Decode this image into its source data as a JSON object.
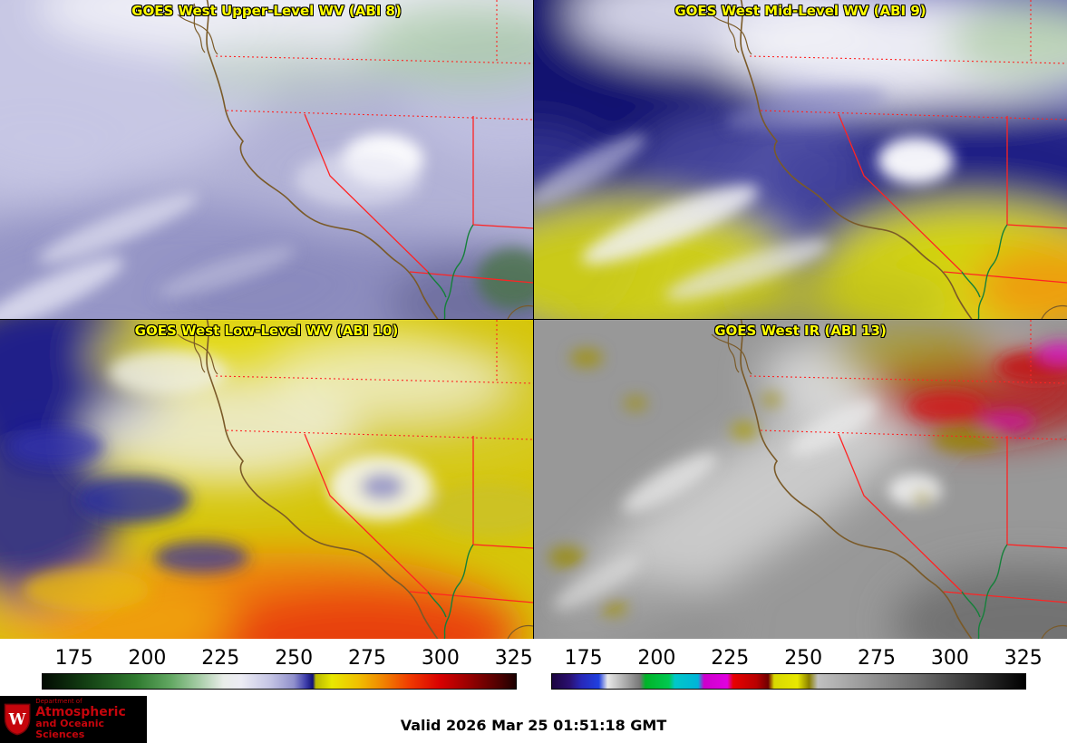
{
  "panels": [
    {
      "id": "abi8",
      "title": "GOES West Upper-Level WV (ABI 8)"
    },
    {
      "id": "abi9",
      "title": "GOES West Mid-Level WV (ABI 9)"
    },
    {
      "id": "abi10",
      "title": "GOES West Low-Level WV (ABI 10)"
    },
    {
      "id": "abi13",
      "title": "GOES West IR (ABI 13)"
    }
  ],
  "colors": {
    "title_color": "#ffff00",
    "border_color": "#ff2323",
    "coast_color": "#7a5a28",
    "river_color": "#15803a",
    "logo_red": "#c5050c",
    "logo_bg": "#000000",
    "page_bg": "#ffffff",
    "label_color": "#000000"
  },
  "chart_data": [
    {
      "type": "colorbar",
      "name": "water-vapor-colorbar",
      "ticks": [
        175,
        200,
        225,
        250,
        275,
        300,
        325
      ],
      "range": [
        164,
        326
      ],
      "stops": [
        {
          "v": 164,
          "c": "#020a02"
        },
        {
          "v": 178,
          "c": "#123c12"
        },
        {
          "v": 196,
          "c": "#2f7a2f"
        },
        {
          "v": 208,
          "c": "#63a863"
        },
        {
          "v": 218,
          "c": "#aacfaa"
        },
        {
          "v": 226,
          "c": "#e9ede9"
        },
        {
          "v": 232,
          "c": "#ececf4"
        },
        {
          "v": 242,
          "c": "#c4c4e4"
        },
        {
          "v": 250,
          "c": "#9090cc"
        },
        {
          "v": 254,
          "c": "#4040ac"
        },
        {
          "v": 256.5,
          "c": "#101078"
        },
        {
          "v": 257.5,
          "c": "#b8b800"
        },
        {
          "v": 263,
          "c": "#e8e800"
        },
        {
          "v": 272,
          "c": "#f0c000"
        },
        {
          "v": 280,
          "c": "#f08800"
        },
        {
          "v": 290,
          "c": "#f03800"
        },
        {
          "v": 300,
          "c": "#d80000"
        },
        {
          "v": 310,
          "c": "#980000"
        },
        {
          "v": 320,
          "c": "#500000"
        },
        {
          "v": 326,
          "c": "#1c0000"
        }
      ]
    },
    {
      "type": "colorbar",
      "name": "infrared-colorbar",
      "ticks": [
        175,
        200,
        225,
        250,
        275,
        300,
        325
      ],
      "range": [
        164,
        326
      ],
      "stops": [
        {
          "v": 164,
          "c": "#1c0440"
        },
        {
          "v": 170,
          "c": "#2a1070"
        },
        {
          "v": 174,
          "c": "#2828b8"
        },
        {
          "v": 180,
          "c": "#2040e0"
        },
        {
          "v": 183,
          "c": "#e8e8e8"
        },
        {
          "v": 194,
          "c": "#787878"
        },
        {
          "v": 196,
          "c": "#00b428"
        },
        {
          "v": 204,
          "c": "#00c850"
        },
        {
          "v": 206,
          "c": "#00c8c8"
        },
        {
          "v": 214,
          "c": "#00b4d8"
        },
        {
          "v": 216,
          "c": "#cc00cc"
        },
        {
          "v": 224,
          "c": "#e000e0"
        },
        {
          "v": 226,
          "c": "#e80000"
        },
        {
          "v": 234,
          "c": "#b80000"
        },
        {
          "v": 238,
          "c": "#700000"
        },
        {
          "v": 240,
          "c": "#d8d800"
        },
        {
          "v": 248,
          "c": "#e8e800"
        },
        {
          "v": 252,
          "c": "#8a8000"
        },
        {
          "v": 255,
          "c": "#c0c0c0"
        },
        {
          "v": 290,
          "c": "#6a6a6a"
        },
        {
          "v": 326,
          "c": "#000000"
        }
      ]
    }
  ],
  "footer": {
    "valid_label": "Valid 2026 Mar 25 01:51:18 GMT",
    "logo": {
      "line1": "Department of",
      "line2": "Atmospheric",
      "line3": "and Oceanic Sciences",
      "crest_letter": "W"
    }
  }
}
